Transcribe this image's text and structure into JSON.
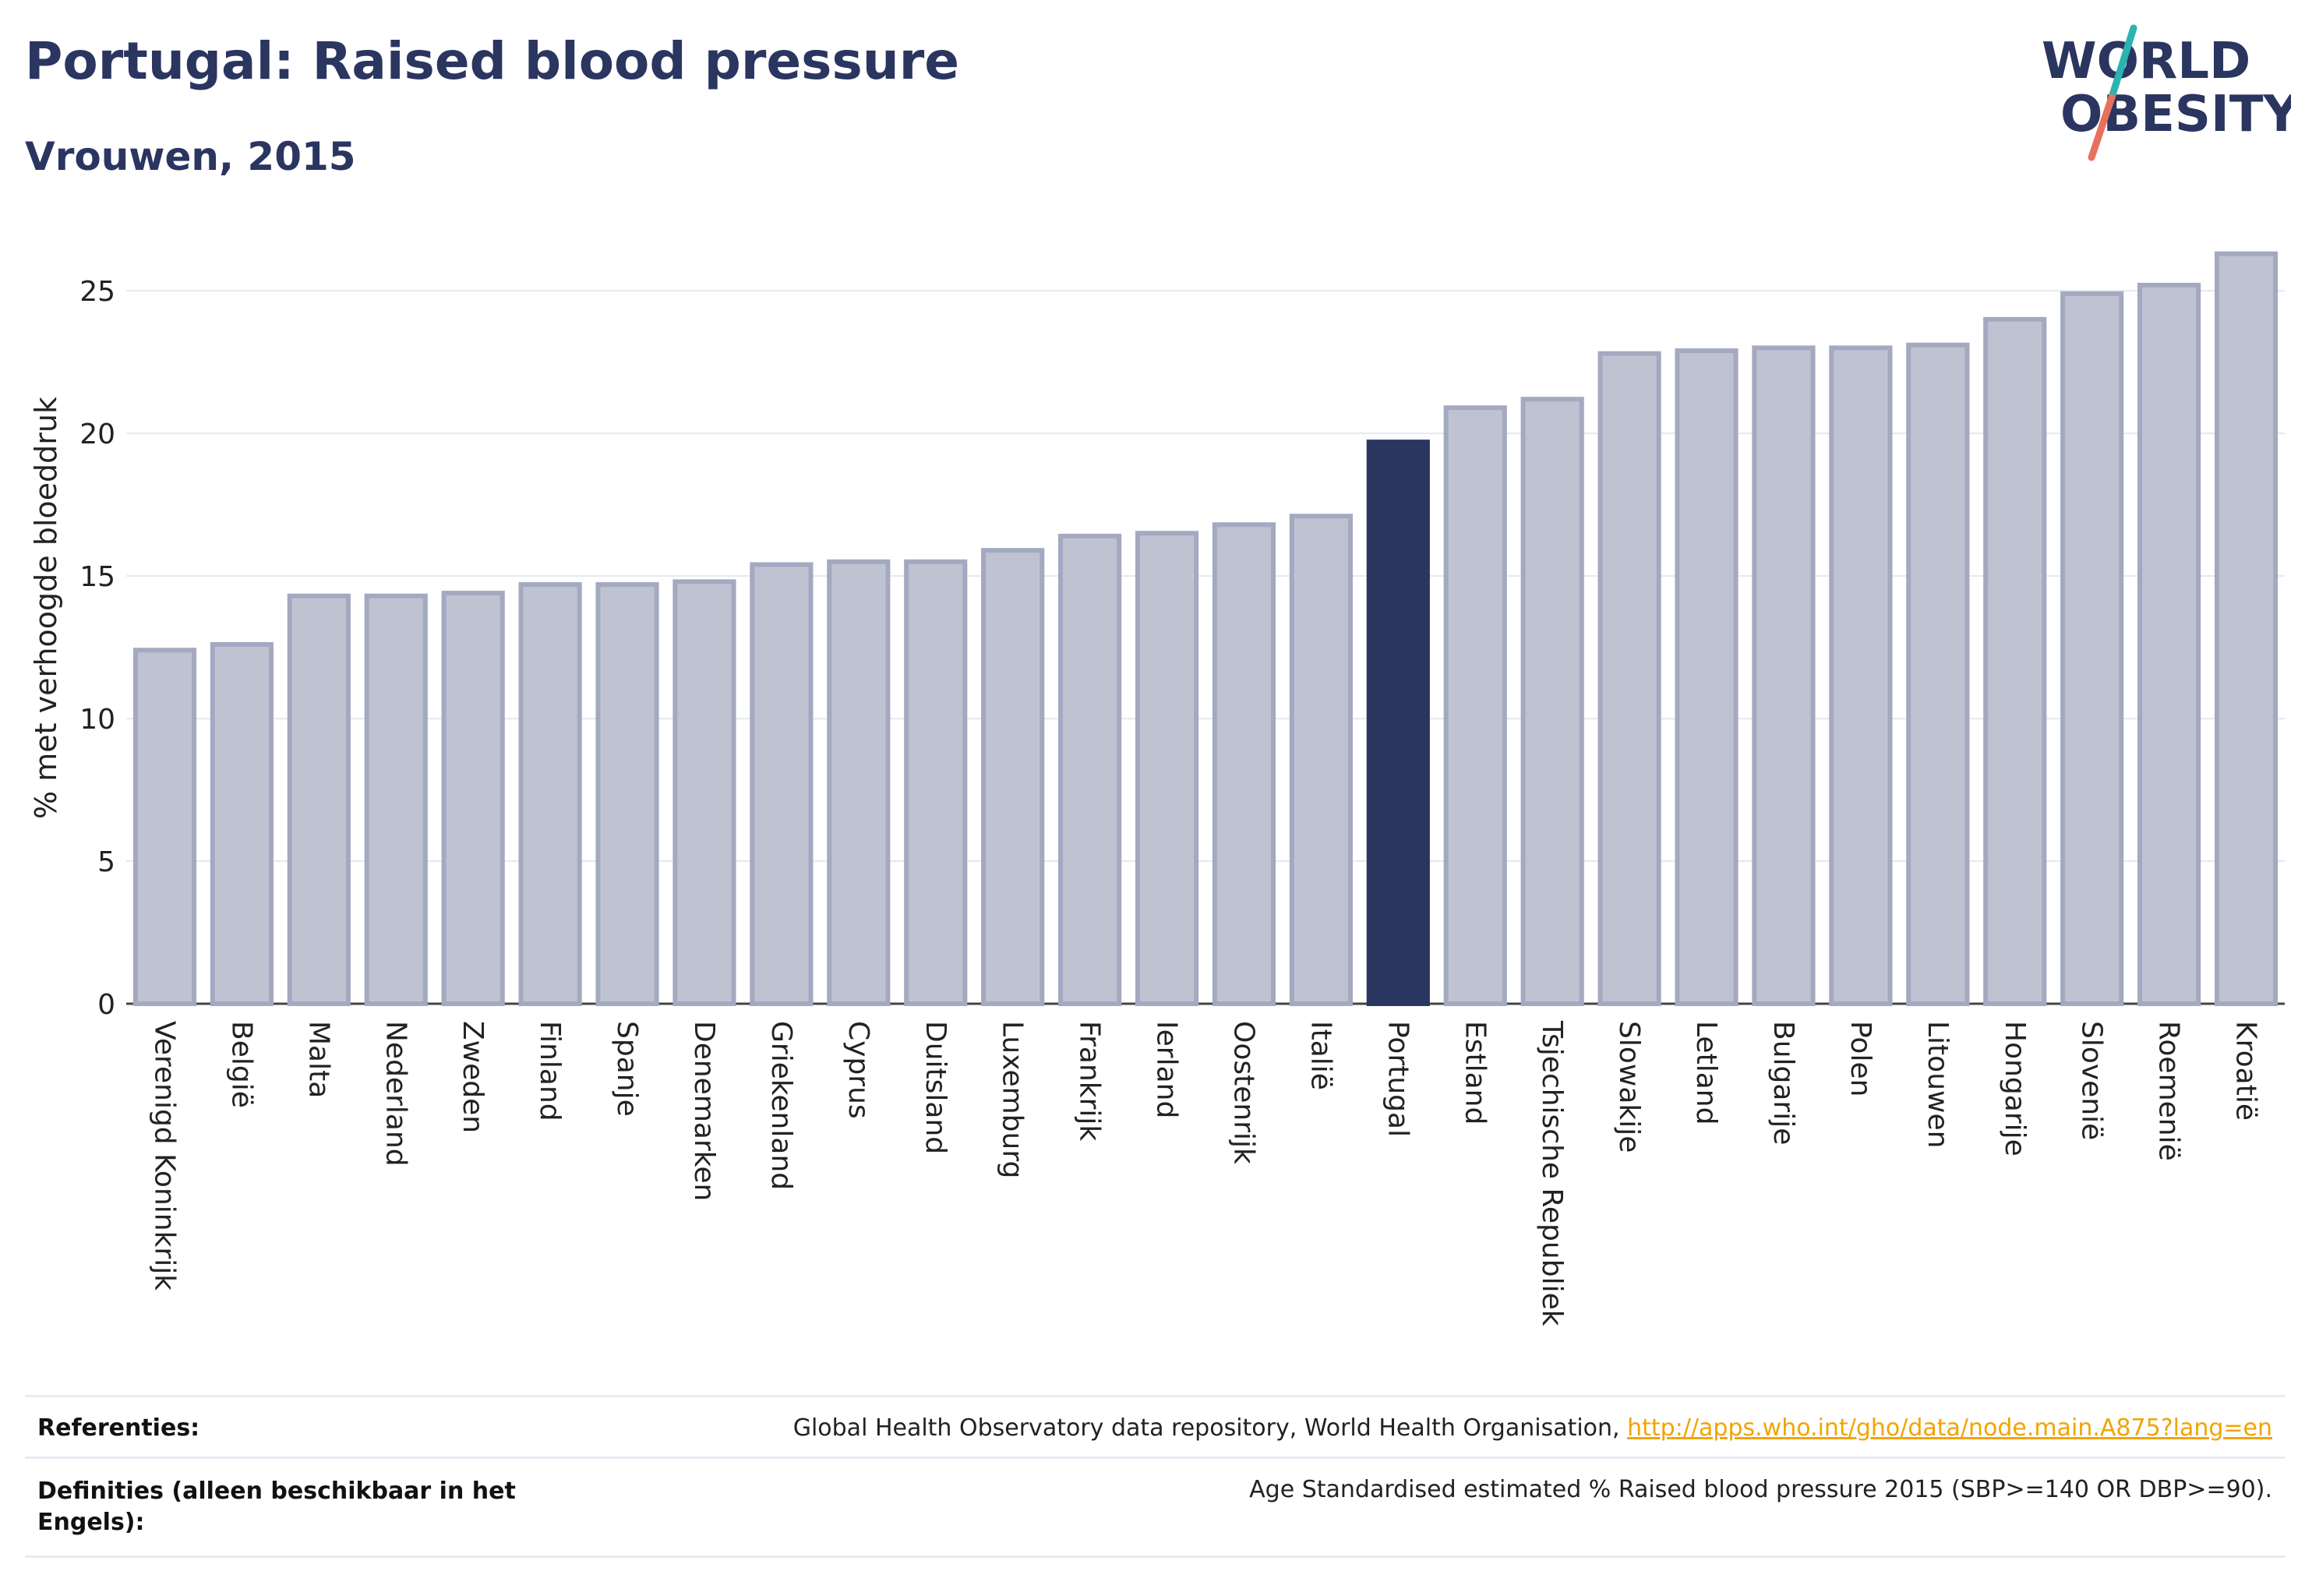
{
  "header": {
    "title": "Portugal: Raised blood pressure",
    "subtitle": "Vrouwen, 2015"
  },
  "logo": {
    "line1": "WORLD",
    "line2": "OBESITY",
    "colors": {
      "text": "#2a3560",
      "slash_top": "#2ab3b1",
      "slash_bottom": "#e8715e"
    }
  },
  "colors": {
    "highlight_bar": "#2a3560",
    "default_bar_fill": "#bfc3d1",
    "default_bar_stroke": "#a3a9c0",
    "grid": "#e6e8ef",
    "axis_text": "#222222"
  },
  "chart_data": {
    "type": "bar",
    "title": "Portugal: Raised blood pressure",
    "subtitle": "Vrouwen, 2015",
    "xlabel": "",
    "ylabel": "% met verhoogde bloeddruk",
    "ylim": [
      0,
      27
    ],
    "yticks": [
      0,
      5,
      10,
      15,
      20,
      25
    ],
    "grid": true,
    "highlight": "Portugal",
    "categories": [
      "Verenigd Koninkrijk",
      "België",
      "Malta",
      "Nederland",
      "Zweden",
      "Finland",
      "Spanje",
      "Denemarken",
      "Griekenland",
      "Cyprus",
      "Duitsland",
      "Luxemburg",
      "Frankrijk",
      "Ierland",
      "Oostenrijk",
      "Italië",
      "Portugal",
      "Estland",
      "Tsjechische Republiek",
      "Slowakije",
      "Letland",
      "Bulgarije",
      "Polen",
      "Litouwen",
      "Hongarije",
      "Slovenië",
      "Roemenië",
      "Kroatië"
    ],
    "values": [
      12.4,
      12.6,
      14.3,
      14.3,
      14.4,
      14.7,
      14.7,
      14.8,
      15.4,
      15.5,
      15.5,
      15.9,
      16.4,
      16.5,
      16.8,
      17.1,
      19.7,
      20.9,
      21.2,
      22.8,
      22.9,
      23.0,
      23.0,
      23.1,
      24.0,
      24.9,
      25.2,
      26.3
    ]
  },
  "footer": {
    "references_label": "Referenties:",
    "references_text": "Global Health Observatory data repository, World Health Organisation,",
    "references_link": "http://apps.who.int/gho/data/node.main.A875?lang=en",
    "definitions_label_line1": "Definities (alleen beschikbaar in het",
    "definitions_label_line2": "Engels):",
    "definitions_text": "Age Standardised estimated % Raised blood pressure 2015 (SBP>=140 OR DBP>=90)."
  }
}
